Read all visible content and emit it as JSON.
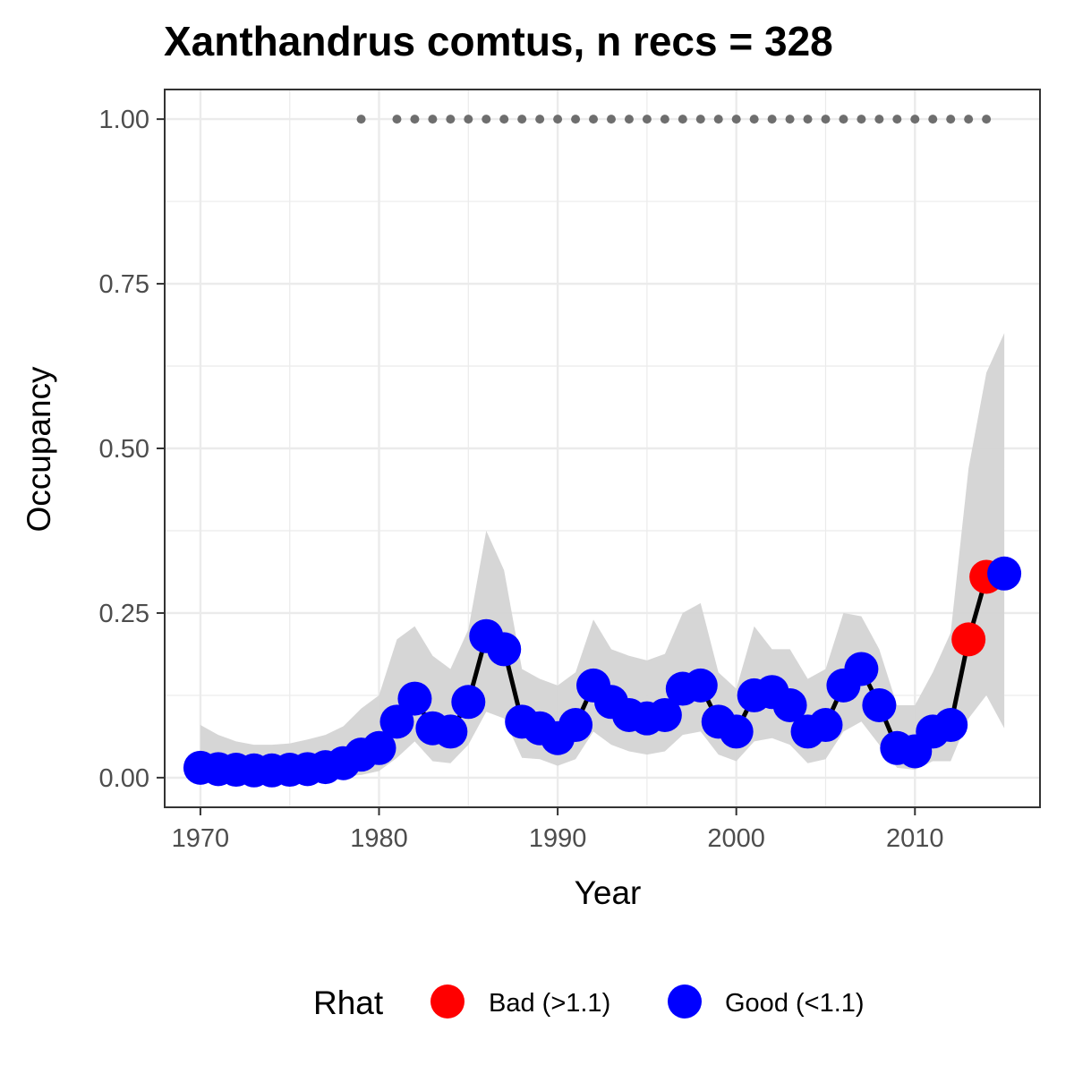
{
  "chart_data": {
    "type": "line",
    "title": "Xanthandrus comtus, n recs = 328",
    "xlabel": "Year",
    "ylabel": "Occupancy",
    "xlim": [
      1968,
      2017
    ],
    "ylim": [
      -0.045,
      1.045
    ],
    "x_ticks": [
      1970,
      1980,
      1990,
      2000,
      2010
    ],
    "x_tick_labels": [
      "1970",
      "1980",
      "1990",
      "2000",
      "2010"
    ],
    "y_ticks": [
      0,
      0.25,
      0.5,
      0.75,
      1.0
    ],
    "y_tick_labels": [
      "0.00",
      "0.25",
      "0.50",
      "0.75",
      "1.00"
    ],
    "grid": true,
    "legend": {
      "title": "Rhat",
      "placement": "bottom",
      "entries": [
        {
          "label": "Bad (>1.1)",
          "color": "#ff0000"
        },
        {
          "label": "Good (<1.1)",
          "color": "#0000ff"
        }
      ]
    },
    "colors": {
      "bad": "#ff0000",
      "good": "#0000ff",
      "line": "#000000",
      "ribbon": "#d4d4d4",
      "record_dots": "#6e6e6e",
      "grid": "#ebebeb",
      "panel_border": "#333333"
    },
    "series": {
      "x": [
        1970,
        1971,
        1972,
        1973,
        1974,
        1975,
        1976,
        1977,
        1978,
        1979,
        1980,
        1981,
        1982,
        1983,
        1984,
        1985,
        1986,
        1987,
        1988,
        1989,
        1990,
        1991,
        1992,
        1993,
        1994,
        1995,
        1996,
        1997,
        1998,
        1999,
        2000,
        2001,
        2002,
        2003,
        2004,
        2005,
        2006,
        2007,
        2008,
        2009,
        2010,
        2011,
        2012,
        2013,
        2014,
        2015
      ],
      "occupancy": [
        0.015,
        0.013,
        0.012,
        0.011,
        0.011,
        0.012,
        0.013,
        0.016,
        0.022,
        0.035,
        0.045,
        0.085,
        0.12,
        0.075,
        0.07,
        0.115,
        0.215,
        0.195,
        0.085,
        0.075,
        0.06,
        0.08,
        0.14,
        0.115,
        0.095,
        0.09,
        0.095,
        0.135,
        0.14,
        0.085,
        0.07,
        0.125,
        0.13,
        0.11,
        0.07,
        0.08,
        0.14,
        0.165,
        0.11,
        0.045,
        0.04,
        0.07,
        0.08,
        0.21,
        0.305,
        0.31
      ],
      "lower": [
        0.001,
        0.001,
        0.001,
        0.001,
        0.001,
        0.001,
        0.001,
        0.001,
        0.002,
        0.004,
        0.01,
        0.03,
        0.055,
        0.025,
        0.022,
        0.05,
        0.1,
        0.09,
        0.03,
        0.028,
        0.018,
        0.028,
        0.07,
        0.05,
        0.04,
        0.035,
        0.04,
        0.065,
        0.07,
        0.035,
        0.025,
        0.055,
        0.06,
        0.05,
        0.022,
        0.028,
        0.07,
        0.085,
        0.05,
        0.015,
        0.012,
        0.025,
        0.025,
        0.09,
        0.125,
        0.075
      ],
      "upper": [
        0.08,
        0.065,
        0.055,
        0.05,
        0.05,
        0.052,
        0.058,
        0.065,
        0.078,
        0.105,
        0.125,
        0.21,
        0.23,
        0.185,
        0.165,
        0.225,
        0.375,
        0.315,
        0.165,
        0.15,
        0.14,
        0.16,
        0.24,
        0.195,
        0.185,
        0.178,
        0.188,
        0.25,
        0.265,
        0.16,
        0.135,
        0.23,
        0.195,
        0.195,
        0.15,
        0.165,
        0.25,
        0.245,
        0.195,
        0.11,
        0.11,
        0.16,
        0.22,
        0.47,
        0.615,
        0.675
      ],
      "rhat": [
        "good",
        "good",
        "good",
        "good",
        "good",
        "good",
        "good",
        "good",
        "good",
        "good",
        "good",
        "good",
        "good",
        "good",
        "good",
        "good",
        "good",
        "good",
        "good",
        "good",
        "good",
        "good",
        "good",
        "good",
        "good",
        "good",
        "good",
        "good",
        "good",
        "good",
        "good",
        "good",
        "good",
        "good",
        "good",
        "good",
        "good",
        "good",
        "good",
        "good",
        "good",
        "good",
        "good",
        "bad",
        "bad",
        "good"
      ]
    },
    "record_years": {
      "x": [
        1979,
        1981,
        1982,
        1983,
        1984,
        1985,
        1986,
        1987,
        1988,
        1989,
        1990,
        1991,
        1992,
        1993,
        1994,
        1995,
        1996,
        1997,
        1998,
        1999,
        2000,
        2001,
        2002,
        2003,
        2004,
        2005,
        2006,
        2007,
        2008,
        2009,
        2010,
        2011,
        2012,
        2013,
        2014
      ],
      "y": 1.0
    }
  }
}
